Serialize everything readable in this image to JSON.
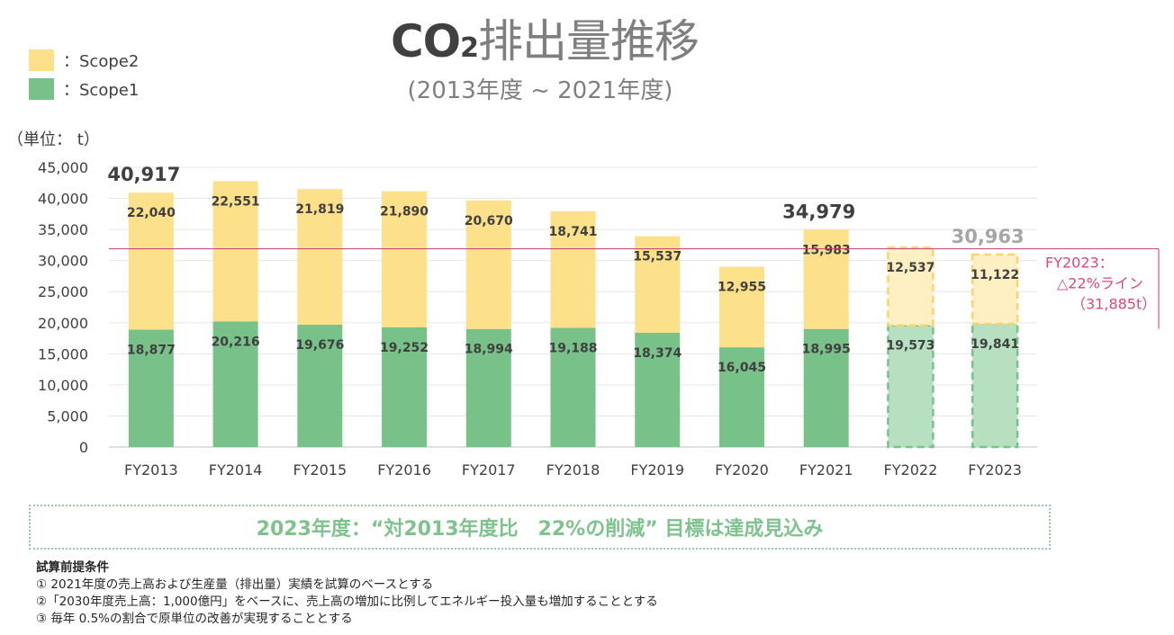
{
  "title": {
    "co": "CO",
    "sub": "2",
    "jp": "排出量推移"
  },
  "subtitle": "(2013年度 ~ 2021年度)",
  "legend": [
    {
      "label": "：Scope2",
      "color": "#fde08a"
    },
    {
      "label": "：Scope1",
      "color": "#78c28a"
    }
  ],
  "unit_label": "（単位： t）",
  "chart_data": {
    "type": "bar",
    "stacked": true,
    "categories": [
      "FY2013",
      "FY2014",
      "FY2015",
      "FY2016",
      "FY2017",
      "FY2018",
      "FY2019",
      "FY2020",
      "FY2021",
      "FY2022",
      "FY2023"
    ],
    "series": [
      {
        "name": "Scope1",
        "color": "#78c28a",
        "values": [
          18877,
          20216,
          19676,
          19252,
          18994,
          19188,
          18374,
          16045,
          18995,
          19573,
          19841
        ]
      },
      {
        "name": "Scope2",
        "color": "#fde08a",
        "values": [
          22040,
          22551,
          21819,
          21890,
          20670,
          18741,
          15537,
          12955,
          15983,
          12537,
          11122
        ]
      }
    ],
    "value_labels": {
      "Scope1": [
        "18,877",
        "20,216",
        "19,676",
        "19,252",
        "18,994",
        "19,188",
        "18,374",
        "16,045",
        "18,995",
        "19,573",
        "19,841"
      ],
      "Scope2": [
        "22,040",
        "22,551",
        "21,819",
        "21,890",
        "20,670",
        "18,741",
        "15,537",
        "12,955",
        "15,983",
        "12,537",
        "11,122"
      ]
    },
    "projected_categories": [
      "FY2022",
      "FY2023"
    ],
    "total_labels": [
      {
        "category": "FY2013",
        "text": "40,917",
        "color": "#404040"
      },
      {
        "category": "FY2021",
        "text": "34,979",
        "color": "#404040"
      },
      {
        "category": "FY2023",
        "text": "30,963",
        "color": "#a6a6a6"
      }
    ],
    "ylim": [
      0,
      45000
    ],
    "yticks": [
      0,
      5000,
      10000,
      15000,
      20000,
      25000,
      30000,
      35000,
      40000,
      45000
    ],
    "ytick_labels": [
      "0",
      "5,000",
      "10,000",
      "15,000",
      "20,000",
      "25,000",
      "30,000",
      "35,000",
      "40,000",
      "45,000"
    ],
    "grid": true,
    "reference_line": {
      "value": 31885,
      "color": "#c0397a",
      "label_lines": [
        "FY2023：",
        "△22%ライン",
        "（31,885t）"
      ],
      "label_color": "#e0457b"
    }
  },
  "conclusion": "2023年度：“対2013年度比　22%の削減” 目標は達成見込み",
  "notes": {
    "heading": "試算前提条件",
    "items": [
      "①  2021年度の売上高および生産量（排出量）実績を試算のベースとする",
      "②「2030年度売上高：1,000億円」をベースに、売上高の増加に比例してエネルギー投入量も増加することとする",
      "③  毎年 0.5%の割合で原単位の改善が実現することとする"
    ]
  }
}
